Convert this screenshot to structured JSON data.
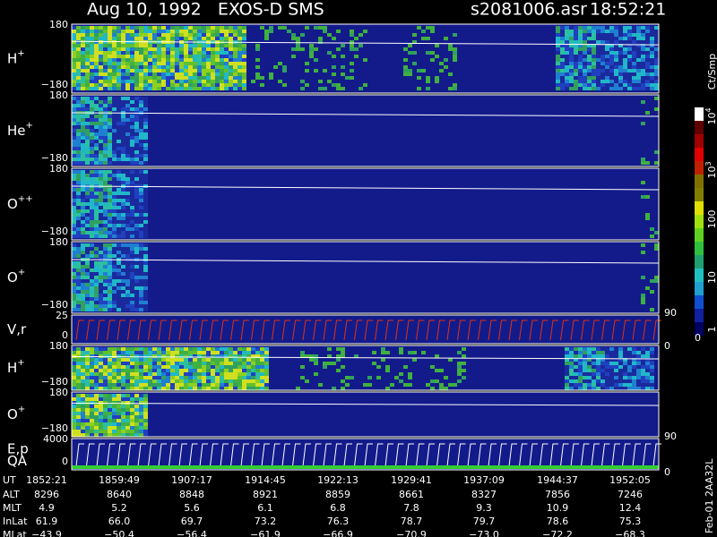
{
  "header": {
    "title": "Aug 10, 1992   EXOS-D SMS",
    "file": "s2081006.asr",
    "time": "18:52:21"
  },
  "panels": [
    {
      "label": "H",
      "sup": "+",
      "top": "180",
      "bottom": "−180"
    },
    {
      "label": "He",
      "sup": "+",
      "top": "180",
      "bottom": "−180"
    },
    {
      "label": "O",
      "sup": "++",
      "top": "180",
      "bottom": "−180"
    },
    {
      "label": "O",
      "sup": "+",
      "top": "180",
      "bottom": "−180",
      "right": "90"
    },
    {
      "label": "V,r",
      "top": "25",
      "bottom": "0",
      "right": "0"
    },
    {
      "label": "H",
      "sup": "+",
      "top": "180",
      "bottom": "−180"
    },
    {
      "label": "O",
      "sup": "+",
      "top": "180",
      "bottom": "−180",
      "right": "90"
    },
    {
      "label": "E,p",
      "label2": "QA",
      "top": "4000",
      "bottom": "0",
      "right": "0"
    }
  ],
  "colorbar": {
    "unit": "Ct/Smp",
    "ticks": [
      {
        "text": "1"
      },
      {
        "text": "10"
      },
      {
        "text": "100"
      },
      {
        "text": "10",
        "sup": "3"
      },
      {
        "text": "10",
        "sup": "4"
      }
    ],
    "zero": "0"
  },
  "footer": {
    "labels": [
      "UT",
      "ALT",
      "MLT",
      "InLat",
      "MLat"
    ],
    "rows": [
      [
        "1852:21",
        "1859:49",
        "1907:17",
        "1914:45",
        "1922:13",
        "1929:41",
        "1937:09",
        "1944:37",
        "1952:05"
      ],
      [
        "8296",
        "8640",
        "8848",
        "8921",
        "8859",
        "8661",
        "8327",
        "7856",
        "7246"
      ],
      [
        "4.9",
        "5.2",
        "5.6",
        "6.1",
        "6.8",
        "7.8",
        "9.3",
        "10.9",
        "12.4"
      ],
      [
        "61.9",
        "66.0",
        "69.7",
        "73.2",
        "76.3",
        "78.7",
        "79.7",
        "78.6",
        "75.3"
      ],
      [
        "−43.9",
        "−50.4",
        "−56.4",
        "−61.9",
        "−66.9",
        "−70.9",
        "−73.0",
        "−72.2",
        "−68.3"
      ]
    ]
  },
  "stamp": "Feb-01 2AA32L"
}
